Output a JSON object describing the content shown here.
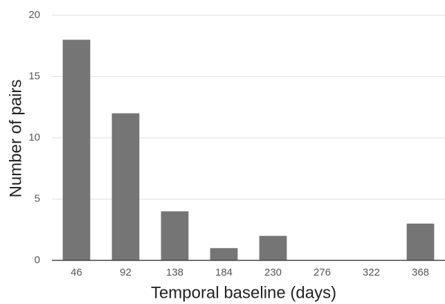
{
  "chart_data": {
    "type": "bar",
    "x_label": "Temporal baseline (days)",
    "y_label": "Number of pairs",
    "categories": [
      "46",
      "92",
      "138",
      "184",
      "230",
      "276",
      "322",
      "368"
    ],
    "values": [
      18,
      12,
      4,
      1,
      2,
      0,
      0,
      3
    ],
    "color": "#757575",
    "ylim": [
      0,
      20
    ],
    "yticks": [
      0,
      5,
      10,
      15,
      20
    ],
    "grid": true
  }
}
